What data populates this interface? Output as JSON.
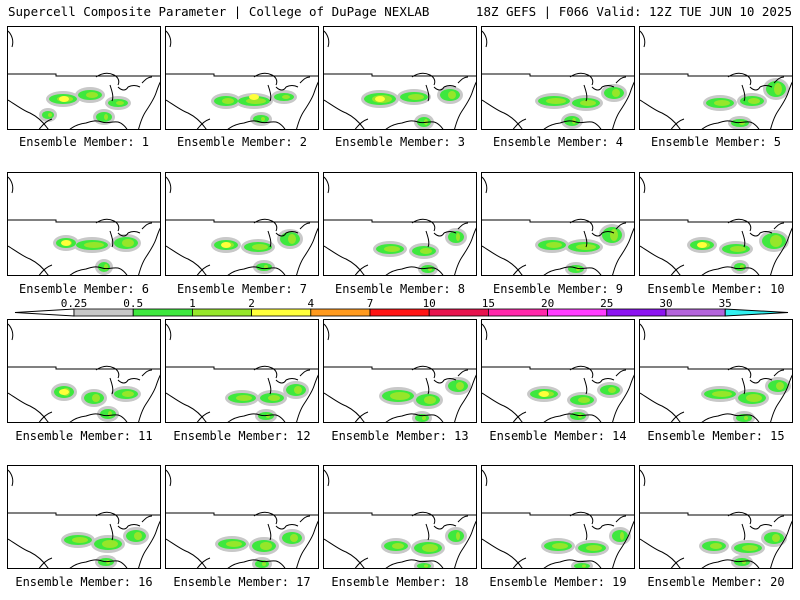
{
  "header": {
    "title": "Supercell Composite Parameter | College of DuPage NEXLAB",
    "run_info": "18Z GEFS | F066 Valid: 12Z TUE JUN 10 2025"
  },
  "member_label_prefix": "Ensemble Member:",
  "members": [
    {
      "number": 1,
      "label": "Ensemble Member: 1"
    },
    {
      "number": 2,
      "label": "Ensemble Member: 2"
    },
    {
      "number": 3,
      "label": "Ensemble Member: 3"
    },
    {
      "number": 4,
      "label": "Ensemble Member: 4"
    },
    {
      "number": 5,
      "label": "Ensemble Member: 5"
    },
    {
      "number": 6,
      "label": "Ensemble Member: 6"
    },
    {
      "number": 7,
      "label": "Ensemble Member: 7"
    },
    {
      "number": 8,
      "label": "Ensemble Member: 8"
    },
    {
      "number": 9,
      "label": "Ensemble Member: 9"
    },
    {
      "number": 10,
      "label": "Ensemble Member: 10"
    },
    {
      "number": 11,
      "label": "Ensemble Member: 11"
    },
    {
      "number": 12,
      "label": "Ensemble Member: 12"
    },
    {
      "number": 13,
      "label": "Ensemble Member: 13"
    },
    {
      "number": 14,
      "label": "Ensemble Member: 14"
    },
    {
      "number": 15,
      "label": "Ensemble Member: 15"
    },
    {
      "number": 16,
      "label": "Ensemble Member: 16"
    },
    {
      "number": 17,
      "label": "Ensemble Member: 17"
    },
    {
      "number": 18,
      "label": "Ensemble Member: 18"
    },
    {
      "number": 19,
      "label": "Ensemble Member: 19"
    },
    {
      "number": 20,
      "label": "Ensemble Member: 20"
    }
  ],
  "legend": {
    "thresholds": [
      "0.25",
      "0.5",
      "1",
      "2",
      "4",
      "7",
      "10",
      "15",
      "20",
      "25",
      "30",
      "35"
    ],
    "colors": [
      "#c8c8c8",
      "#3ee83e",
      "#96e62a",
      "#ffff3a",
      "#ff9a1e",
      "#ff1414",
      "#e6144e",
      "#ff28aa",
      "#ff3cff",
      "#8c14f0",
      "#b464dc",
      "#32f0f0"
    ]
  }
}
